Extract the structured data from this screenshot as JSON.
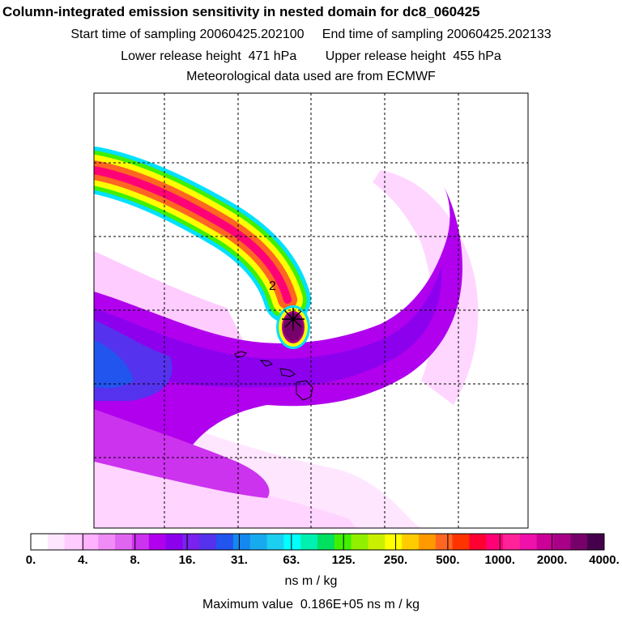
{
  "header": {
    "title": "Column-integrated emission sensitivity in nested domain for dc8_060425",
    "line1": "Start time of sampling 20060425.202100     End time of sampling 20060425.202133",
    "line2": "Lower release height  471 hPa        Upper release height  455 hPa",
    "line3": "Meteorological data used are from ECMWF"
  },
  "map": {
    "contour_label": "2",
    "release_marker": "star-icon"
  },
  "colorbar": {
    "colors": [
      "#ffffff",
      "#ffe6ff",
      "#ffccff",
      "#ffb3ff",
      "#f08cf5",
      "#e066f0",
      "#cc33ee",
      "#b000ee",
      "#8c00ee",
      "#7a22ee",
      "#5533ee",
      "#2255ee",
      "#1488ee",
      "#18aaee",
      "#1ccef0",
      "#00ffff",
      "#00f0b0",
      "#00e060",
      "#40f000",
      "#90f000",
      "#c8f000",
      "#ffff00",
      "#ffcc00",
      "#ff9900",
      "#ff6622",
      "#ff3300",
      "#ff0033",
      "#ff0077",
      "#ff2299",
      "#ee11aa",
      "#cc0099",
      "#aa0088",
      "#77006a",
      "#44004a"
    ],
    "labels": [
      "0.",
      "4.",
      "8.",
      "16.",
      "31.",
      "63.",
      "125.",
      "250.",
      "500.",
      "1000.",
      "2000.",
      "4000."
    ],
    "unit": "ns m / kg"
  },
  "footer": {
    "max_value": "Maximum value  0.186E+05 ns m / kg"
  }
}
